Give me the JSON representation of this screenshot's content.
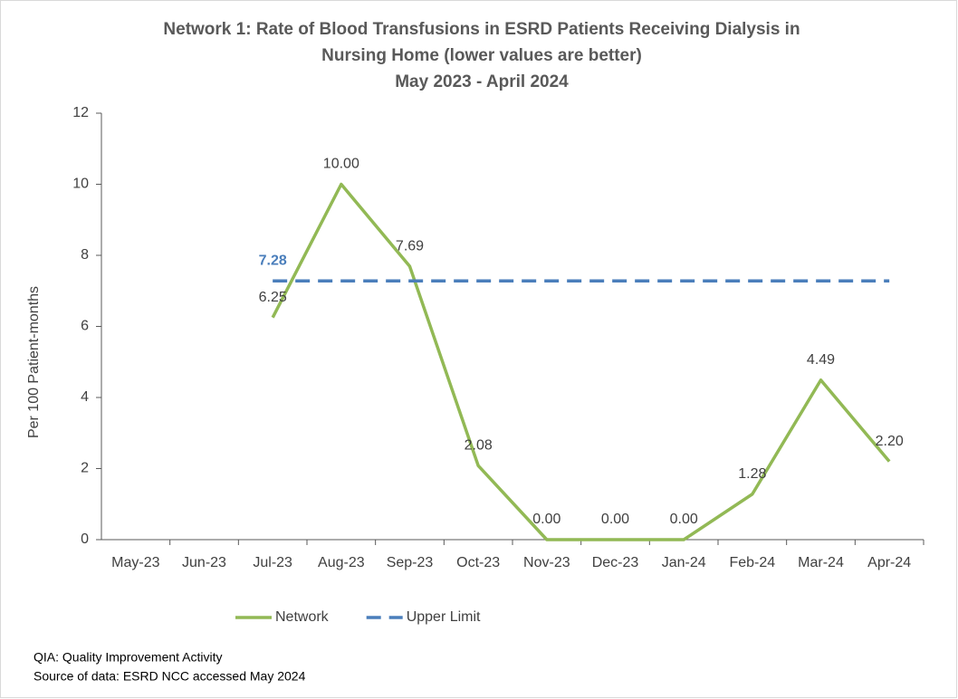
{
  "chart_data": {
    "type": "line",
    "title": [
      "Network 1: Rate of Blood Transfusions in ESRD Patients Receiving Dialysis in",
      "Nursing Home (lower values are better)"
    ],
    "subtitle": "May 2023 - April 2024",
    "y_label": "Per 100 Patient-months",
    "categories": [
      "May-23",
      "Jun-23",
      "Jul-23",
      "Aug-23",
      "Sep-23",
      "Oct-23",
      "Nov-23",
      "Dec-23",
      "Jan-24",
      "Feb-24",
      "Mar-24",
      "Apr-24"
    ],
    "series": [
      {
        "name": "Network",
        "color": "#92b955",
        "dash": false,
        "values": [
          null,
          null,
          6.25,
          10.0,
          7.69,
          2.08,
          0.0,
          0.0,
          0.0,
          1.28,
          4.49,
          2.2
        ],
        "value_labels": [
          null,
          null,
          "6.25",
          "10.00",
          "7.69",
          "2.08",
          "0.00",
          "0.00",
          "0.00",
          "1.28",
          "4.49",
          "2.20"
        ]
      },
      {
        "name": "Upper Limit",
        "color": "#4a7ebb",
        "dash": true,
        "values": [
          null,
          null,
          7.28,
          7.28,
          7.28,
          7.28,
          7.28,
          7.28,
          7.28,
          7.28,
          7.28,
          7.28
        ],
        "value_labels": [
          null,
          null,
          "7.28",
          null,
          null,
          null,
          null,
          null,
          null,
          null,
          null,
          null
        ]
      }
    ],
    "ylim": [
      0,
      12
    ],
    "yticks": [
      0,
      2,
      4,
      6,
      8,
      10,
      12
    ],
    "grid": false,
    "legend": "bottom",
    "footnotes": [
      "QIA:  Quality Improvement Activity",
      "Source of data:  ESRD NCC accessed May 2024"
    ]
  }
}
